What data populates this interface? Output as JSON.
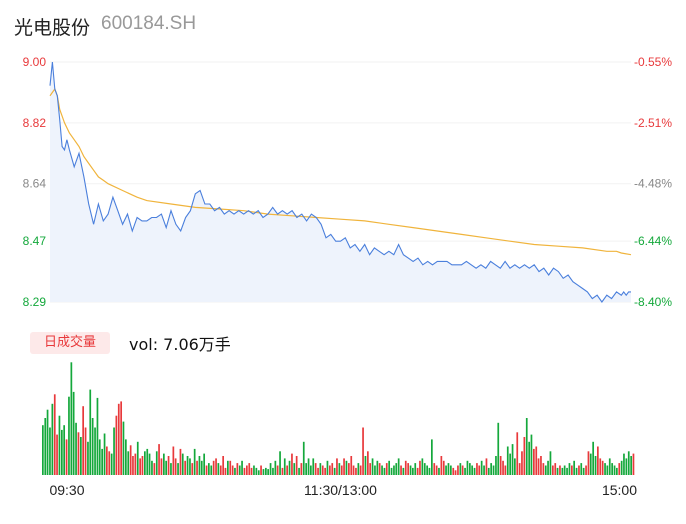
{
  "header": {
    "stock_name": "光电股份",
    "stock_code": "600184.SH"
  },
  "volume_panel": {
    "tab_label": "日成交量",
    "vol_text": "vol: 7.06万手"
  },
  "colors": {
    "up": "#e8393b",
    "down": "#14a83b",
    "neutral": "#888888",
    "price_line": "#4a7fdc",
    "avg_line": "#f0b43c",
    "area_fill": "#eef3fc"
  },
  "chart_data": {
    "type": "line",
    "title": "",
    "price_axis": {
      "ticks": [
        9.0,
        8.82,
        8.64,
        8.47,
        8.29
      ],
      "tick_labels": [
        "9.00",
        "8.82",
        "8.64",
        "8.47",
        "8.29"
      ],
      "tick_colors": [
        "up",
        "up",
        "neutral",
        "down",
        "down"
      ],
      "ylim": [
        8.29,
        9.0
      ]
    },
    "pct_axis": {
      "tick_labels": [
        "-0.55%",
        "-2.51%",
        "-4.48%",
        "-6.44%",
        "-8.40%"
      ],
      "tick_colors": [
        "up",
        "up",
        "neutral",
        "down",
        "down"
      ]
    },
    "time_axis": {
      "labels": [
        "09:30",
        "11:30/13:00",
        "15:00"
      ],
      "minutes": [
        0,
        120,
        240
      ]
    },
    "series": [
      {
        "name": "price",
        "x": [
          0,
          1,
          2,
          3,
          4,
          5,
          6,
          7,
          8,
          10,
          12,
          14,
          16,
          18,
          20,
          22,
          24,
          26,
          28,
          30,
          32,
          34,
          36,
          38,
          40,
          42,
          44,
          46,
          48,
          50,
          52,
          54,
          56,
          58,
          60,
          62,
          64,
          66,
          68,
          70,
          72,
          74,
          76,
          78,
          80,
          82,
          84,
          86,
          88,
          90,
          92,
          94,
          96,
          98,
          100,
          102,
          104,
          106,
          108,
          110,
          112,
          114,
          116,
          118,
          120,
          122,
          124,
          126,
          128,
          130,
          132,
          134,
          136,
          138,
          140,
          142,
          144,
          146,
          148,
          150,
          152,
          154,
          156,
          158,
          160,
          162,
          164,
          166,
          168,
          170,
          172,
          174,
          176,
          178,
          180,
          182,
          184,
          186,
          188,
          190,
          192,
          194,
          196,
          198,
          200,
          202,
          204,
          206,
          208,
          210,
          212,
          214,
          216,
          218,
          220,
          222,
          224,
          226,
          228,
          230,
          232,
          234,
          236,
          237,
          238,
          239,
          240
        ],
        "values": [
          8.93,
          9.0,
          8.92,
          8.9,
          8.83,
          8.75,
          8.74,
          8.77,
          8.74,
          8.69,
          8.73,
          8.66,
          8.58,
          8.52,
          8.58,
          8.53,
          8.55,
          8.6,
          8.56,
          8.52,
          8.55,
          8.5,
          8.54,
          8.53,
          8.53,
          8.54,
          8.54,
          8.55,
          8.51,
          8.56,
          8.52,
          8.5,
          8.54,
          8.56,
          8.61,
          8.62,
          8.58,
          8.58,
          8.56,
          8.57,
          8.55,
          8.56,
          8.55,
          8.56,
          8.55,
          8.56,
          8.55,
          8.56,
          8.54,
          8.55,
          8.57,
          8.55,
          8.56,
          8.55,
          8.56,
          8.54,
          8.55,
          8.53,
          8.55,
          8.54,
          8.52,
          8.48,
          8.49,
          8.47,
          8.47,
          8.48,
          8.45,
          8.46,
          8.44,
          8.46,
          8.43,
          8.45,
          8.44,
          8.43,
          8.44,
          8.43,
          8.46,
          8.43,
          8.42,
          8.41,
          8.42,
          8.4,
          8.41,
          8.4,
          8.41,
          8.41,
          8.41,
          8.4,
          8.4,
          8.4,
          8.41,
          8.4,
          8.39,
          8.4,
          8.39,
          8.41,
          8.4,
          8.39,
          8.41,
          8.39,
          8.4,
          8.39,
          8.4,
          8.39,
          8.4,
          8.38,
          8.39,
          8.37,
          8.39,
          8.38,
          8.36,
          8.37,
          8.35,
          8.34,
          8.33,
          8.32,
          8.3,
          8.31,
          8.29,
          8.31,
          8.3,
          8.32,
          8.31,
          8.32,
          8.31,
          8.32,
          8.32
        ]
      },
      {
        "name": "avg",
        "x": [
          0,
          1,
          2,
          3,
          4,
          6,
          8,
          10,
          12,
          14,
          16,
          18,
          20,
          22,
          24,
          30,
          36,
          40,
          50,
          60,
          70,
          80,
          90,
          100,
          110,
          120,
          130,
          140,
          150,
          160,
          170,
          180,
          190,
          200,
          210,
          220,
          230,
          234,
          236,
          240
        ],
        "values": [
          8.9,
          8.91,
          8.92,
          8.9,
          8.86,
          8.82,
          8.79,
          8.77,
          8.75,
          8.72,
          8.7,
          8.68,
          8.66,
          8.65,
          8.64,
          8.62,
          8.6,
          8.59,
          8.58,
          8.57,
          8.565,
          8.56,
          8.55,
          8.545,
          8.54,
          8.535,
          8.53,
          8.52,
          8.51,
          8.5,
          8.49,
          8.48,
          8.47,
          8.46,
          8.455,
          8.45,
          8.44,
          8.44,
          8.435,
          8.43
        ]
      }
    ],
    "volume": {
      "name": "volume",
      "values": [
        42,
        48,
        55,
        40,
        60,
        68,
        34,
        50,
        38,
        42,
        30,
        66,
        95,
        70,
        44,
        36,
        32,
        58,
        40,
        28,
        72,
        48,
        40,
        65,
        30,
        22,
        35,
        24,
        20,
        18,
        40,
        50,
        60,
        62,
        45,
        30,
        20,
        25,
        16,
        18,
        28,
        14,
        16,
        20,
        22,
        18,
        12,
        10,
        20,
        26,
        14,
        18,
        12,
        16,
        10,
        24,
        14,
        10,
        22,
        18,
        12,
        16,
        14,
        10,
        22,
        12,
        16,
        12,
        18,
        8,
        10,
        8,
        12,
        14,
        10,
        8,
        16,
        6,
        12,
        12,
        8,
        6,
        10,
        8,
        12,
        6,
        8,
        10,
        6,
        8,
        6,
        4,
        8,
        5,
        6,
        5,
        10,
        6,
        12,
        8,
        20,
        6,
        14,
        8,
        12,
        18,
        10,
        16,
        6,
        10,
        28,
        10,
        14,
        8,
        14,
        10,
        6,
        10,
        8,
        6,
        12,
        8,
        10,
        6,
        14,
        10,
        8,
        14,
        12,
        10,
        16,
        8,
        6,
        10,
        8,
        40,
        16,
        20,
        10,
        14,
        8,
        12,
        10,
        8,
        6,
        10,
        12,
        6,
        8,
        10,
        14,
        8,
        6,
        12,
        10,
        8,
        6,
        10,
        6,
        12,
        14,
        10,
        8,
        6,
        30,
        10,
        8,
        6,
        16,
        12,
        8,
        10,
        8,
        6,
        4,
        8,
        10,
        8,
        6,
        12,
        10,
        8,
        6,
        10,
        8,
        12,
        8,
        14,
        6,
        10,
        8,
        16,
        44,
        16,
        12,
        8,
        24,
        18,
        26,
        14,
        36,
        10,
        20,
        32,
        48,
        28,
        34,
        22,
        24,
        14,
        16,
        10,
        8,
        12,
        20,
        8,
        10,
        6,
        8,
        6,
        8,
        6,
        10,
        8,
        12,
        6,
        8,
        10,
        6,
        8,
        20,
        18,
        28,
        16,
        24,
        14,
        12,
        10,
        8,
        14,
        10,
        8,
        6,
        10,
        12,
        18,
        14,
        20,
        16,
        18
      ],
      "sides": "gdgggrrgggrggggrgrrggggggggrrggrrrgggrrrgrrggggrgrrggrgrrgrgrggrgrgggrggrrgrrrgrrgrggrrrrgggrggggggrgrgrgrgrgrgggggrrgrrgrrgrgrrgrrrrgrrgrrgggrggrgggggrgrrgggrrgggggrrgrrgggrrrgrgggggrrggrgggggrrrggggrrrrgggrrrrrgggrrgrggggrggrggrrgggrrrggggggrgggggrgggrrrr"
    }
  }
}
